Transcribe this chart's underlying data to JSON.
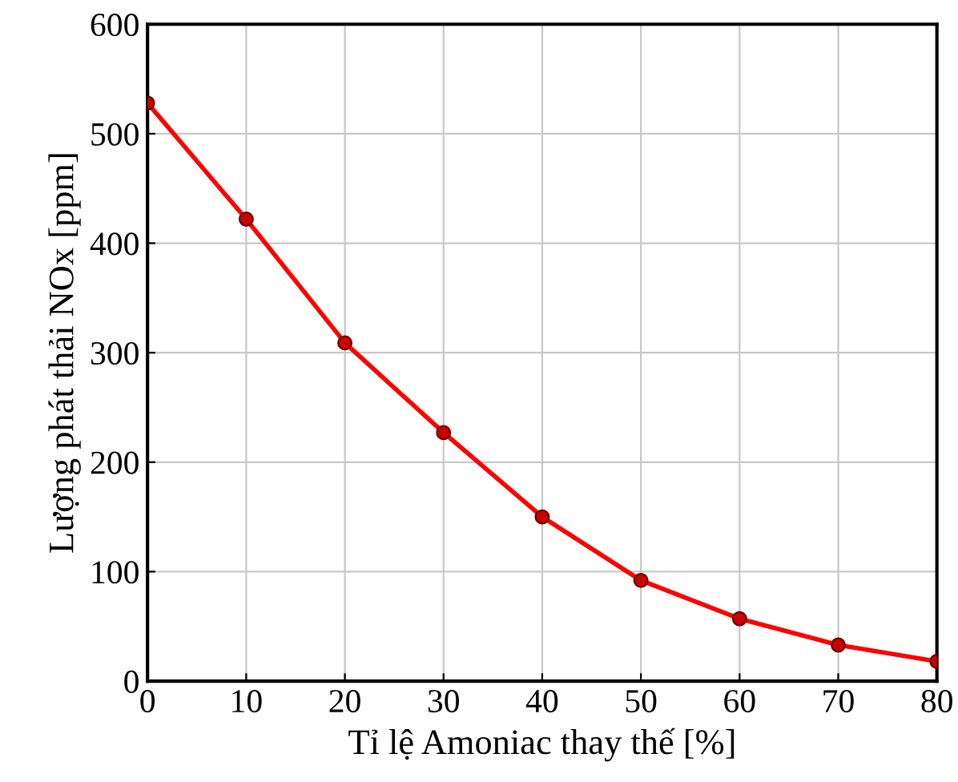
{
  "chart_data": {
    "type": "line",
    "xlabel": "Tỉ lệ Amoniac thay thế [%]",
    "ylabel": "Lượng phát thải NOx [ppm]",
    "x": [
      0,
      10,
      20,
      30,
      40,
      50,
      60,
      70,
      80
    ],
    "series": [
      {
        "color": "#ff0000",
        "values": [
          528,
          422,
          309,
          227,
          150,
          92,
          57,
          33,
          18
        ]
      }
    ],
    "xlim": [
      0,
      80
    ],
    "xticks": [
      0,
      10,
      20,
      30,
      40,
      50,
      60,
      70,
      80
    ],
    "ylim": [
      0,
      600
    ],
    "yticks": [
      0,
      100,
      200,
      300,
      400,
      500,
      600
    ],
    "grid": true,
    "marker": "circle",
    "line_style": "solid"
  }
}
